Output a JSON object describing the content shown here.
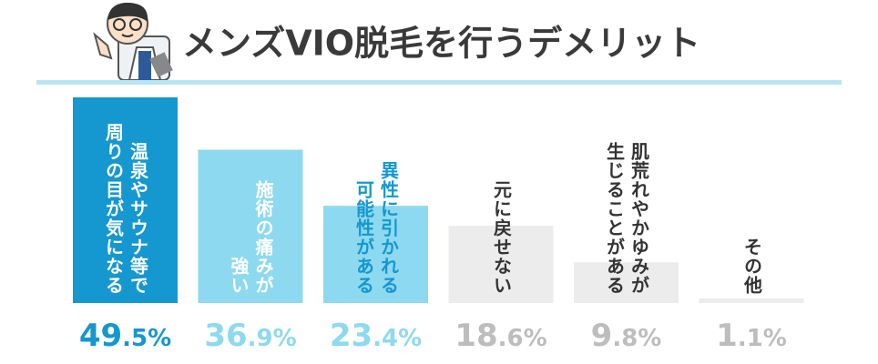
{
  "chart_data": {
    "type": "bar",
    "title": "メンズVIO脱毛を行うデメリット",
    "categories": [
      "温泉やサウナ等で\n周りの目が気になる",
      "施術の痛みが\n強い",
      "異性に引かれる\n可能性がある",
      "元に戻せない",
      "肌荒れやかゆみが\n生じることがある",
      "その他"
    ],
    "values": [
      49.5,
      36.9,
      23.4,
      18.6,
      9.8,
      1.1
    ],
    "value_labels": [
      "49.5%",
      "36.9%",
      "23.4%",
      "18.6%",
      "9.8%",
      "1.1%"
    ],
    "colors": [
      "#1597cf",
      "#8dd9f0",
      "#8dd9f0",
      "#ececec",
      "#ececec",
      "#ececec"
    ],
    "label_colors": [
      "#1597cf",
      "#8dd9f0",
      "#8dd9f0",
      "#bdbdbd",
      "#bdbdbd",
      "#bdbdbd"
    ],
    "category_text_colors": [
      "#ffffff",
      "#ffffff",
      "#1597cf",
      "#333333",
      "#333333",
      "#333333"
    ]
  }
}
